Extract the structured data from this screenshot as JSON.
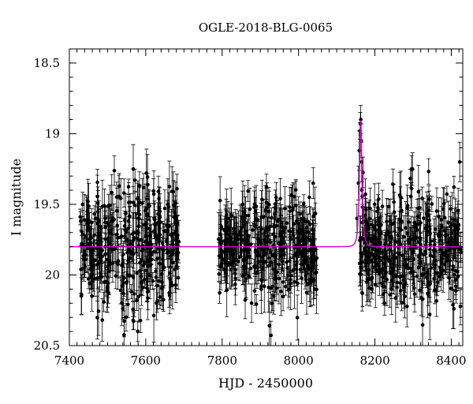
{
  "chart_data": {
    "type": "scatter",
    "title": "OGLE-2018-BLG-0065",
    "xlabel": "HJD - 2450000",
    "ylabel": "I magnitude",
    "xlim": [
      7400,
      8430
    ],
    "ylim": [
      20.5,
      18.4
    ],
    "y_inverted": true,
    "x_ticks": [
      7400,
      7600,
      7800,
      8000,
      8200,
      8400
    ],
    "x_tick_labels": [
      "7400",
      "7600",
      "7800",
      "8000",
      "8200",
      "8400"
    ],
    "y_ticks": [
      18.5,
      19,
      19.5,
      20,
      20.5
    ],
    "y_tick_labels": [
      "18.5",
      "19",
      "19.5",
      "20",
      "20.5"
    ],
    "grid": false,
    "legend": "none",
    "marker_color": "#000000",
    "model_color": "#cc00cc",
    "observing_seasons": [
      {
        "x_range": [
          7428,
          7688
        ],
        "mean_mag": 19.8,
        "scatter": 0.17
      },
      {
        "x_range": [
          7790,
          8050
        ],
        "mean_mag": 19.8,
        "scatter": 0.15
      },
      {
        "x_range": [
          8160,
          8425
        ],
        "mean_mag": 19.82,
        "scatter": 0.16
      }
    ],
    "series": [
      {
        "name": "",
        "kind": "points",
        "x": [
          7432,
          7447,
          7461,
          7478,
          7495,
          7512,
          7528,
          7543,
          7559,
          7574,
          7590,
          7606,
          7622,
          7638,
          7655,
          7670,
          7685,
          7798,
          7815,
          7833,
          7850,
          7868,
          7887,
          7905,
          7922,
          7941,
          7958,
          7977,
          7995,
          8013,
          8031,
          8048,
          8153,
          8157,
          8159,
          8161,
          8162,
          8163,
          8164,
          8165,
          8166,
          8168,
          8171,
          8174,
          8178,
          8190,
          8206,
          8221,
          8237,
          8253,
          8270,
          8287,
          8303,
          8320,
          8338,
          8355,
          8372,
          8390,
          8408,
          8422
        ],
        "y": [
          19.78,
          19.55,
          19.95,
          19.72,
          19.85,
          19.62,
          19.9,
          19.42,
          19.88,
          19.7,
          20.05,
          19.8,
          19.6,
          19.92,
          19.75,
          19.85,
          20.02,
          19.77,
          19.6,
          19.9,
          19.72,
          19.84,
          19.55,
          19.95,
          19.68,
          19.86,
          19.7,
          19.9,
          19.62,
          19.82,
          19.75,
          19.88,
          19.6,
          19.35,
          19.12,
          18.98,
          18.93,
          18.9,
          19.05,
          19.2,
          19.4,
          19.52,
          19.62,
          19.7,
          19.74,
          19.85,
          19.55,
          19.92,
          19.7,
          19.88,
          19.62,
          19.95,
          19.75,
          19.82,
          19.58,
          19.9,
          19.72,
          19.86,
          19.65,
          19.2
        ]
      },
      {
        "name": "",
        "kind": "model",
        "baseline": 19.8,
        "peak_mag": 18.9,
        "t0": 8163,
        "tE": 6.4,
        "u0": 0.36
      }
    ]
  }
}
